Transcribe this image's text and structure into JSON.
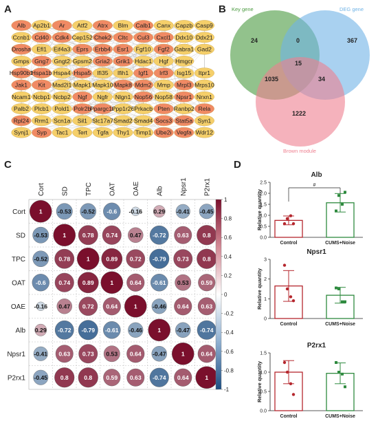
{
  "panels": {
    "a": "A",
    "b": "B",
    "c": "C",
    "d": "D"
  },
  "network": {
    "rows": [
      [
        "Alb",
        "Ap2b1",
        "Ar",
        "Atf2",
        "Atrx",
        "Blm",
        "Calb1",
        "Canx",
        "Capzb",
        "Casp9"
      ],
      [
        "Ccnb1",
        "Cd40",
        "Cdk4",
        "Cep152",
        "Chek2",
        "Cltc",
        "Cul3",
        "Cxcl1",
        "Ddx10",
        "Ddx21"
      ],
      [
        "Drosha",
        "Efl1",
        "Eif4a3",
        "Eprs",
        "Erbb4",
        "Esr1",
        "Fgf10",
        "Fgf2",
        "Gabra1",
        "Gad2"
      ],
      [
        "Gmps",
        "Gng7",
        "Gngt2",
        "Gpsm2",
        "Gria2",
        "Grik1",
        "Hdac1",
        "Hgf",
        "Hmgcr",
        ""
      ],
      [
        "Hsp90b1",
        "Hspa1b",
        "Hspa4",
        "Hspa5",
        "Ifi35",
        "Ifih1",
        "Igf1",
        "Irf3",
        "Isg15",
        "Itpr1"
      ],
      [
        "Jak1",
        "Kit",
        "Mad2l1",
        "Mapk1",
        "Mapk10",
        "Mapk8",
        "Mdm2",
        "Mmp",
        "Mrpl3",
        "Mrps10"
      ],
      [
        "Ncam1",
        "Ncbp1",
        "Ncbp2",
        "Ngf",
        "Ngfr",
        "Nlgn1",
        "Nop56",
        "Nop58",
        "Npsr1",
        "Nrxn1"
      ],
      [
        "Palb2",
        "Plcb1",
        "Pold1",
        "Polr2b",
        "Ppargc1a",
        "Ppp1r26",
        "Prkacb",
        "Pten",
        "Ranbp2",
        "Rela"
      ],
      [
        "Rpl24",
        "Rrm1",
        "Scn1a",
        "Sil1",
        "Slc17a7",
        "Smad2",
        "Smad4",
        "Socs3",
        "Stat5a",
        "Syn1"
      ],
      [
        "Synj1",
        "Syp",
        "Tac1",
        "Tert",
        "Tgfa",
        "Thy1",
        "Timp1",
        "Ube2i",
        "Vegfa",
        "Wdr12"
      ]
    ],
    "highlight": [
      "Alb",
      "Ar",
      "Atrx",
      "Calb1",
      "Cd40",
      "Cdk4",
      "Chek2",
      "Cltc",
      "Cul3",
      "Cxcl1",
      "Drosha",
      "Eprs",
      "Erbb4",
      "Esr1",
      "Fgf2",
      "Gng7",
      "Gria2",
      "Grik1",
      "Hsp90b1",
      "Hspa1b",
      "Hspa5",
      "Igf1",
      "Irf3",
      "Jak1",
      "Kit",
      "Mapk8",
      "Mdm2",
      "Mrpl3",
      "Ngf",
      "Nop56",
      "Npsr1",
      "Polr2b",
      "Ppargc1a",
      "Pten",
      "Rela",
      "Rpl24",
      "Socs3",
      "Stat5a",
      "Syp",
      "Ube2i",
      "Vegfa"
    ],
    "colors": {
      "hi": "#f08a64",
      "lo": "#f5cf6a"
    }
  },
  "venn": {
    "labels": {
      "key": "Key gene",
      "deg": "DEG gene",
      "brown": "Brown module"
    },
    "colors": {
      "key": "#4a9a3f",
      "deg": "#6fb3e6",
      "brown": "#ee7f8f"
    },
    "counts": {
      "key_only": "24",
      "key_deg": "0",
      "deg_only": "367",
      "all": "15",
      "key_brown": "1035",
      "deg_brown": "34",
      "brown_only": "1222"
    }
  },
  "corr": {
    "labels": [
      "Cort",
      "SD",
      "TPC",
      "OAT",
      "OAE",
      "Alb",
      "Npsr1",
      "P2rx1"
    ],
    "values": [
      [
        1,
        -0.53,
        -0.52,
        -0.6,
        -0.16,
        0.29,
        -0.41,
        -0.45
      ],
      [
        -0.53,
        1,
        0.78,
        0.74,
        0.47,
        -0.72,
        0.63,
        0.8
      ],
      [
        -0.52,
        0.78,
        1,
        0.89,
        0.72,
        -0.79,
        0.73,
        0.8
      ],
      [
        -0.6,
        0.74,
        0.89,
        1,
        0.64,
        -0.61,
        0.53,
        0.59
      ],
      [
        -0.16,
        0.47,
        0.72,
        0.64,
        1,
        -0.46,
        0.64,
        0.63
      ],
      [
        0.29,
        -0.72,
        -0.79,
        -0.61,
        -0.46,
        1,
        -0.47,
        -0.74
      ],
      [
        -0.41,
        0.63,
        0.73,
        0.53,
        0.64,
        -0.47,
        1,
        0.64
      ],
      [
        -0.45,
        0.8,
        0.8,
        0.59,
        0.63,
        -0.74,
        0.64,
        1
      ]
    ],
    "display": [
      [
        "1",
        "-0.53",
        "-0.52",
        "-0.6",
        "-0.16",
        "0.29",
        "-0.41",
        "-0.45"
      ],
      [
        "-0.53",
        "1",
        "0.78",
        "0.74",
        "0.47",
        "-0.72",
        "0.63",
        "0.8"
      ],
      [
        "-0.52",
        "0.78",
        "1",
        "0.89",
        "0.72",
        "-0.79",
        "0.73",
        "0.8"
      ],
      [
        "-0.6",
        "0.74",
        "0.89",
        "1",
        "0.64",
        "-0.61",
        "0.53",
        "0.59"
      ],
      [
        "-0.16",
        "0.47",
        "0.72",
        "0.64",
        "1",
        "-0.46",
        "0.64",
        "0.63"
      ],
      [
        "0.29",
        "-0.72",
        "-0.79",
        "-0.61",
        "-0.46",
        "1",
        "-0.47",
        "-0.74"
      ],
      [
        "-0.41",
        "0.63",
        "0.73",
        "0.53",
        "0.64",
        "-0.47",
        "1",
        "0.64"
      ],
      [
        "-0.45",
        "0.8",
        "0.8",
        "0.59",
        "0.63",
        "-0.74",
        "0.64",
        "1"
      ]
    ],
    "colorbar_ticks": [
      "1",
      "0.8",
      "0.6",
      "0.4",
      "0.2",
      "0",
      "-0.2",
      "-0.4",
      "-0.6",
      "-0.8",
      "-1"
    ],
    "colors": {
      "pos": "#7a0f2c",
      "neg": "#1d4e82"
    }
  },
  "bars": [
    {
      "title": "Alb",
      "ylabel": "Relative quantity",
      "ylim": [
        0,
        2.5
      ],
      "yticks": [
        "0.0",
        "0.5",
        "1.0",
        "1.5",
        "2.0",
        "2.5"
      ],
      "groups": [
        "Control",
        "CUMS+Noise"
      ],
      "means": [
        0.77,
        1.57
      ],
      "sd": [
        0.2,
        0.42
      ],
      "points": [
        [
          0.62,
          0.85,
          0.98,
          0.62
        ],
        [
          1.2,
          1.9,
          1.5,
          2.05
        ]
      ],
      "sig": "#"
    },
    {
      "title": "Npsr1",
      "ylabel": "Relative quantity",
      "ylim": [
        0,
        3
      ],
      "yticks": [
        "0",
        "1",
        "2",
        "3"
      ],
      "groups": [
        "Control",
        "CUMS+Noise"
      ],
      "means": [
        1.65,
        1.18
      ],
      "sd": [
        0.78,
        0.4
      ],
      "points": [
        [
          2.7,
          1.5,
          1.1,
          0.9
        ],
        [
          1.55,
          1.5,
          0.85,
          0.85
        ]
      ],
      "sig": ""
    },
    {
      "title": "P2rx1",
      "ylabel": "Relative quantity",
      "ylim": [
        0,
        1.5
      ],
      "yticks": [
        "0.0",
        "0.5",
        "1.0",
        "1.5"
      ],
      "groups": [
        "Control",
        "CUMS+Noise"
      ],
      "means": [
        1.0,
        0.97
      ],
      "sd": [
        0.3,
        0.27
      ],
      "points": [
        [
          1.25,
          1.0,
          0.7,
          0.42
        ],
        [
          1.25,
          1.0,
          0.95,
          0.62
        ]
      ],
      "sig": ""
    }
  ],
  "bar_colors": {
    "control": "#b5272e",
    "cums": "#2e8a3e"
  }
}
